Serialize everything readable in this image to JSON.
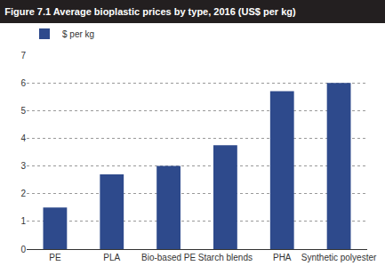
{
  "chart_data": {
    "type": "bar",
    "title": "Figure 7.1 Average bioplastic prices by type, 2016 (US$ per kg)",
    "categories": [
      "PE",
      "PLA",
      "Bio-based PE",
      "Starch blends",
      "PHA",
      "Synthetic polyester"
    ],
    "series": [
      {
        "name": "$ per kg",
        "color": "#2e4a8c",
        "values": [
          1.5,
          2.7,
          3.0,
          3.75,
          5.7,
          6.0
        ]
      }
    ],
    "ylim": [
      0,
      7
    ],
    "yticks": [
      0,
      1,
      2,
      3,
      4,
      5,
      6,
      7
    ],
    "grid": true,
    "legend": "top-left"
  }
}
